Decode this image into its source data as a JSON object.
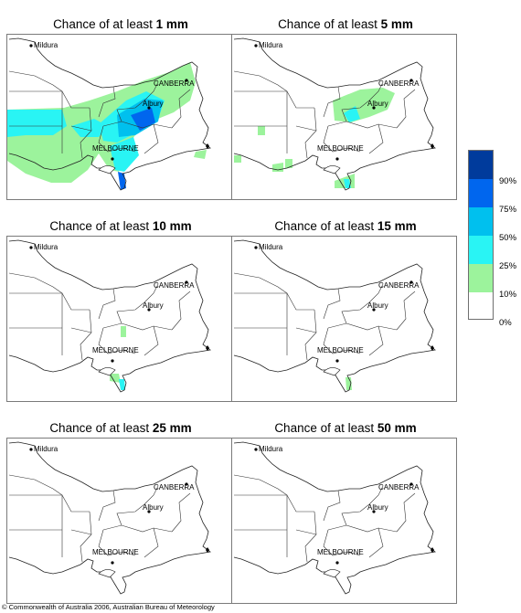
{
  "panels": [
    {
      "prefix": "Chance of at least ",
      "amount": "1 mm",
      "level": 1
    },
    {
      "prefix": "Chance of at least ",
      "amount": "5 mm",
      "level": 2
    },
    {
      "prefix": "Chance of at least ",
      "amount": "10 mm",
      "level": 3
    },
    {
      "prefix": "Chance of at least ",
      "amount": "15 mm",
      "level": 4
    },
    {
      "prefix": "Chance of at least ",
      "amount": "25 mm",
      "level": 5
    },
    {
      "prefix": "Chance of at least ",
      "amount": "50 mm",
      "level": 5
    }
  ],
  "cities": {
    "mildura": "Mildura",
    "canberra": "CANBERRA",
    "albury": "Albury",
    "melbourne": "MELBOURNE"
  },
  "legend": {
    "labels": [
      "90%",
      "75%",
      "50%",
      "25%",
      "10%",
      "0%"
    ],
    "colors": [
      "#003b9c",
      "#0066ee",
      "#00c0ee",
      "#29f4f4",
      "#9cf39c",
      "#ffffff"
    ]
  },
  "copyright": "© Commonwealth of Australia 2006, Australian Bureau of Meteorology"
}
